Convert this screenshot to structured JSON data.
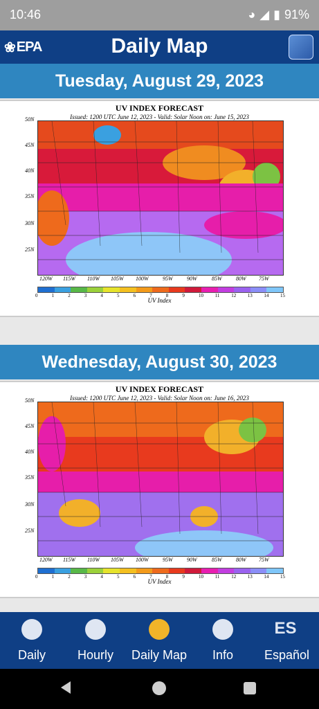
{
  "status": {
    "time": "10:46",
    "battery": "91%"
  },
  "appbar": {
    "brand": "EPA",
    "title": "Daily Map"
  },
  "days": [
    {
      "date_label": "Tuesday, August 29, 2023",
      "map_title": "UV INDEX FORECAST",
      "map_subtitle": "Issued: 1200 UTC June 12, 2023  -  Valid: Solar Noon on: June 15, 2023"
    },
    {
      "date_label": "Wednesday, August 30, 2023",
      "map_title": "UV INDEX FORECAST",
      "map_subtitle": "Issued: 1200 UTC June 12, 2023  -  Valid: Solar Noon on: June 16, 2023"
    }
  ],
  "map_axes": {
    "lat_labels": [
      "50N",
      "45N",
      "40N",
      "35N",
      "30N",
      "25N"
    ],
    "lon_labels": [
      "120W",
      "115W",
      "110W",
      "105W",
      "100W",
      "95W",
      "90W",
      "85W",
      "80W",
      "75W"
    ],
    "colorbar_ticks": [
      "0",
      "1",
      "2",
      "3",
      "4",
      "5",
      "6",
      "7",
      "8",
      "9",
      "10",
      "11",
      "12",
      "13",
      "14",
      "15"
    ],
    "colorbar_label": "UV Index",
    "colorbar_colors": [
      "#1f6fd1",
      "#3aa0e0",
      "#58b848",
      "#9bd13a",
      "#e6e32c",
      "#f4c020",
      "#f39a1a",
      "#ee6a1c",
      "#e83a1e",
      "#d01a3a",
      "#e81eb0",
      "#c23ee0",
      "#9a62ef",
      "#8b8ef7",
      "#7fc6f9"
    ]
  },
  "bottomnav": {
    "items": [
      {
        "label": "Daily",
        "icon": "gear-sun-icon"
      },
      {
        "label": "Hourly",
        "icon": "clock-icon"
      },
      {
        "label": "Daily Map",
        "icon": "globe-icon"
      },
      {
        "label": "Info",
        "icon": "info-icon"
      },
      {
        "label": "Español",
        "icon": "es-icon"
      }
    ],
    "active_color": "#f0b429"
  }
}
